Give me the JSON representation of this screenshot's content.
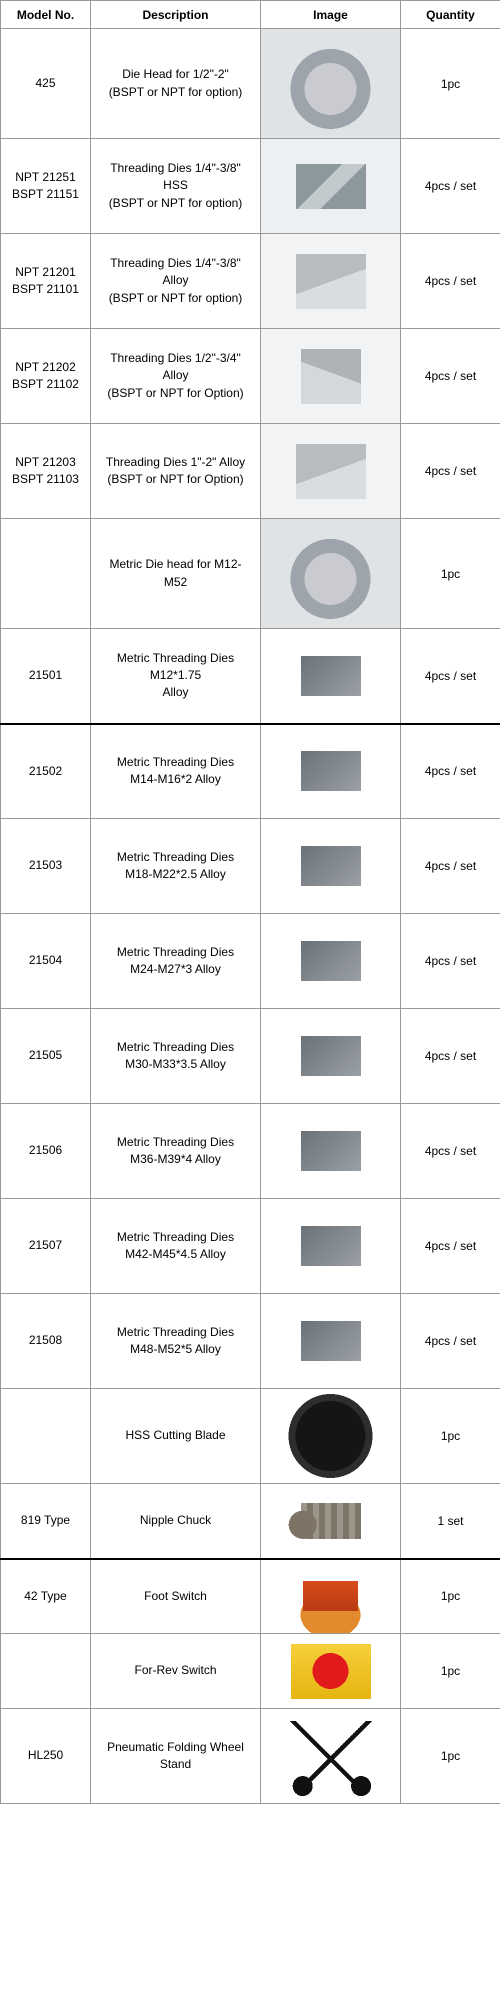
{
  "columns": [
    "Model No.",
    "Description",
    "Image",
    "Quantity"
  ],
  "rows": [
    {
      "model": "425",
      "desc": "Die Head for 1/2\"-2\"\n(BSPT or NPT for option)",
      "qty": "1pc",
      "imgClass": "img-diehead",
      "size": "tall"
    },
    {
      "model": "NPT   21251\nBSPT 21151",
      "desc": "Threading Dies 1/4\"-3/8\" HSS\n(BSPT or NPT for option)",
      "qty": "4pcs / set",
      "imgClass": "img-hss"
    },
    {
      "model": "NPT   21201\nBSPT 21101",
      "desc": "Threading Dies 1/4\"-3/8\" Alloy\n(BSPT or NPT for option)",
      "qty": "4pcs / set",
      "imgClass": "img-alloy"
    },
    {
      "model": "NPT   21202\nBSPT 21102",
      "desc": "Threading Dies 1/2\"-3/4\" Alloy\n(BSPT or NPT for Option)",
      "qty": "4pcs / set",
      "imgClass": "img-alloy2"
    },
    {
      "model": "NPT   21203\nBSPT 21103",
      "desc": "Threading Dies 1\"-2\" Alloy\n(BSPT or NPT for Option)",
      "qty": "4pcs / set",
      "imgClass": "img-alloy"
    },
    {
      "model": "",
      "desc": "Metric Die head for M12-M52",
      "qty": "1pc",
      "imgClass": "img-diehead",
      "size": "tall"
    },
    {
      "model": "21501",
      "desc": "Metric Threading Dies M12*1.75\nAlloy",
      "qty": "4pcs / set",
      "imgClass": "img-metric-dies"
    },
    {
      "model": "21502",
      "desc": "Metric Threading Dies\nM14-M16*2 Alloy",
      "qty": "4pcs / set",
      "imgClass": "img-metric-dies",
      "thickTop": true
    },
    {
      "model": "21503",
      "desc": "Metric Threading Dies\nM18-M22*2.5 Alloy",
      "qty": "4pcs / set",
      "imgClass": "img-metric-dies"
    },
    {
      "model": "21504",
      "desc": "Metric Threading Dies\nM24-M27*3 Alloy",
      "qty": "4pcs / set",
      "imgClass": "img-metric-dies"
    },
    {
      "model": "21505",
      "desc": "Metric Threading Dies\nM30-M33*3.5 Alloy",
      "qty": "4pcs / set",
      "imgClass": "img-metric-dies"
    },
    {
      "model": "21506",
      "desc": "Metric Threading Dies\nM36-M39*4 Alloy",
      "qty": "4pcs / set",
      "imgClass": "img-metric-dies"
    },
    {
      "model": "21507",
      "desc": "Metric Threading Dies\nM42-M45*4.5 Alloy",
      "qty": "4pcs / set",
      "imgClass": "img-metric-dies"
    },
    {
      "model": "21508",
      "desc": "Metric Threading Dies\nM48-M52*5 Alloy",
      "qty": "4pcs / set",
      "imgClass": "img-metric-dies"
    },
    {
      "model": "",
      "desc": "HSS Cutting Blade",
      "qty": "1pc",
      "imgClass": "img-blade"
    },
    {
      "model": "819 Type",
      "desc": "Nipple Chuck",
      "qty": "1 set",
      "imgClass": "img-nipple",
      "size": "short"
    },
    {
      "model": "42 Type",
      "desc": "Foot Switch",
      "qty": "1pc",
      "imgClass": "img-foot",
      "thickTop": true,
      "size": "short"
    },
    {
      "model": "",
      "desc": "For-Rev Switch",
      "qty": "1pc",
      "imgClass": "img-switch",
      "size": "short"
    },
    {
      "model": "HL250",
      "desc": "Pneumatic Folding Wheel\nStand",
      "qty": "1pc",
      "imgClass": "img-stand"
    }
  ]
}
